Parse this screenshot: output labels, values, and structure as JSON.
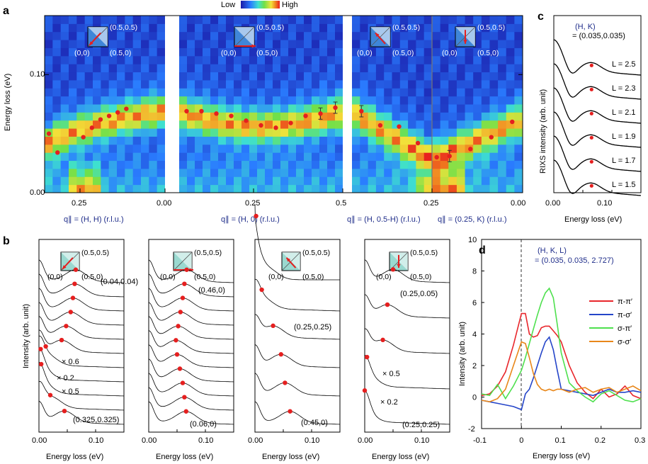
{
  "chart_data": [
    {
      "panel": "a",
      "type": "heatmap",
      "colorbar": {
        "low_label": "Low",
        "high_label": "High"
      },
      "ylabel": "Energy loss (eV)",
      "yticks": [
        "0.00",
        "0.10"
      ],
      "ylim": [
        0,
        0.15
      ],
      "sections": [
        {
          "xlabel": "q∥ = (H, H) (r.l.u.)",
          "ticks": [
            "0.25",
            "0.00"
          ],
          "inset": {
            "arrow": "diag-in",
            "labels": [
              "(0.5,0.5)",
              "(0,0)",
              "(0.5,0)"
            ]
          },
          "q": [
            0.32,
            0.3,
            0.26,
            0.24,
            0.22,
            0.2,
            0.18,
            0.16,
            0.14,
            0.12,
            0.1,
            0.08,
            0.06,
            0.04
          ],
          "peak_energy": [
            0.05,
            0.034,
            null,
            null,
            0.047,
            0.055,
            0.062,
            0.065,
            0.068,
            0.071,
            null,
            null,
            null,
            null
          ]
        },
        {
          "xlabel": "q∥ = (H, 0) (r.l.u.)",
          "ticks": [
            "0.25",
            "0.5"
          ],
          "inset": {
            "arrow": "right",
            "labels": [
              "(0.5,0.5)",
              "(0,0)",
              "(0.5,0)"
            ]
          },
          "q": [
            0.06,
            0.1,
            0.14,
            0.18,
            0.22,
            0.26,
            0.3,
            0.34,
            0.38,
            0.42,
            0.46
          ],
          "peak_energy": [
            0.069,
            0.069,
            0.067,
            0.065,
            0.061,
            0.057,
            0.055,
            0.059,
            0.065,
            0.067,
            0.072
          ]
        },
        {
          "xlabel": "q∥ = (H, 0.5-H) (r.l.u.)",
          "ticks": [
            "0.25"
          ],
          "inset": {
            "arrow": "anti-diag",
            "labels": [
              "(0.5,0.5)",
              "(0,0)",
              "(0.5,0)"
            ]
          },
          "peak_energy": [
            0.069,
            0.057,
            0.056,
            0.042,
            0.03
          ]
        },
        {
          "xlabel": "q∥ = (0.25, K) (r.l.u.)",
          "ticks": [
            "0.00"
          ],
          "inset": {
            "arrow": "down",
            "labels": [
              "(0.5,0.5)",
              "(0,0)",
              "(0.5,0)"
            ]
          },
          "peak_energy": [
            0.031,
            0.037,
            0.047,
            0.06
          ]
        }
      ]
    },
    {
      "panel": "b",
      "type": "line",
      "ylabel": "Intensity (arb. unit)",
      "xlabel": "Energy loss (eV)",
      "xticks": [
        "0.00",
        "0.10"
      ],
      "groups": [
        {
          "top_label": "(0.04,0.04)",
          "bottom_label": "(0.325,0.325)",
          "scale_labels": [
            "× 0.6",
            "× 0.2",
            "× 0.5"
          ],
          "peaks": [
            0.065,
            0.063,
            0.06,
            0.056,
            0.048,
            0.04,
            0.012,
            0.003,
            0.004,
            0.02,
            0.045
          ]
        },
        {
          "top_label": "(0.46,0)",
          "bottom_label": "(0.06,0)",
          "peaks": [
            0.067,
            0.063,
            0.06,
            0.056,
            0.052,
            0.048,
            0.05,
            0.055,
            0.06,
            0.063,
            0.066
          ]
        },
        {
          "top_label": "(0.25,0.25)",
          "bottom_label": "(0.45,0)",
          "peaks": [
            0.002,
            0.012,
            0.032,
            0.046,
            0.053,
            0.062
          ]
        },
        {
          "top_label": "(0.25,0.05)",
          "bottom_label": "(0.25,0.25)",
          "scale_labels": [
            "× 0.5",
            "× 0.2"
          ],
          "peaks": [
            0.05,
            0.04,
            0.032,
            0.004,
            -0.003
          ]
        }
      ]
    },
    {
      "panel": "c",
      "type": "line",
      "annotation_title": "(H, K)",
      "annotation_value": "= (0.035,0.035)",
      "ylabel": "RIXS intensity (arb. unit)",
      "xlabel": "Energy loss (eV)",
      "xticks": [
        "0.00",
        "0.10"
      ],
      "series": [
        {
          "name": "L = 2.5",
          "peak": 0.065
        },
        {
          "name": "L = 2.3",
          "peak": 0.065
        },
        {
          "name": "L = 2.1",
          "peak": 0.065
        },
        {
          "name": "L = 1.9",
          "peak": 0.065
        },
        {
          "name": "L = 1.7",
          "peak": 0.065
        },
        {
          "name": "L = 1.5",
          "peak": 0.065
        }
      ]
    },
    {
      "panel": "d",
      "type": "line",
      "annotation_title": "(H, K, L)",
      "annotation_value": "= (0.035, 0.035, 2.727)",
      "xlabel": "Energy loss (eV)",
      "ylabel": "Intensity (arb. unit)",
      "xlim": [
        -0.1,
        0.3
      ],
      "ylim": [
        -2,
        10
      ],
      "xticks": [
        "-0.1",
        "0",
        "0.1",
        "0.2",
        "0.3"
      ],
      "yticks": [
        "-2",
        "0",
        "2",
        "4",
        "6",
        "8",
        "10"
      ],
      "x": [
        -0.1,
        -0.08,
        -0.06,
        -0.04,
        -0.02,
        0,
        0.01,
        0.02,
        0.03,
        0.04,
        0.05,
        0.06,
        0.07,
        0.08,
        0.09,
        0.1,
        0.12,
        0.14,
        0.16,
        0.18,
        0.2,
        0.22,
        0.24,
        0.26,
        0.28,
        0.3
      ],
      "series": [
        {
          "name": "π-π′",
          "color": "#e8262b",
          "values": [
            0.1,
            0.2,
            0.7,
            1.6,
            3.3,
            5.3,
            5.3,
            4.0,
            3.8,
            3.9,
            4.4,
            4.5,
            4.5,
            4.2,
            3.9,
            3.5,
            2.0,
            0.9,
            0.3,
            -0.1,
            0.5,
            0.0,
            0.2,
            0.7,
            0.1,
            -0.1
          ]
        },
        {
          "name": "π-σ′",
          "color": "#2545c9",
          "values": [
            -0.2,
            -0.3,
            -0.4,
            -0.5,
            -0.6,
            -0.8,
            0.2,
            0.5,
            1.2,
            2.0,
            2.8,
            3.5,
            3.8,
            3.0,
            1.7,
            0.5,
            0.4,
            0.3,
            0.2,
            0.1,
            0.3,
            0.5,
            0.3,
            0.3,
            0.4,
            0.3
          ]
        },
        {
          "name": "σ-π′",
          "color": "#4ee04e",
          "values": [
            0.2,
            0.1,
            0.8,
            -0.1,
            0.7,
            1.7,
            2.5,
            3.4,
            4.3,
            5.2,
            6.0,
            6.6,
            6.9,
            6.3,
            4.6,
            2.8,
            0.9,
            0.4,
            0.0,
            -0.3,
            0.2,
            0.4,
            0.1,
            -0.2,
            -0.3,
            -0.1
          ]
        },
        {
          "name": "σ-σ′",
          "color": "#e8871a",
          "values": [
            -0.2,
            -0.3,
            -0.1,
            0.5,
            2.0,
            3.5,
            3.4,
            2.5,
            1.5,
            0.8,
            0.5,
            0.4,
            0.5,
            0.4,
            0.5,
            0.5,
            0.3,
            0.5,
            0.6,
            0.3,
            0.5,
            0.6,
            0.3,
            0.5,
            0.7,
            0.4
          ]
        }
      ]
    }
  ]
}
